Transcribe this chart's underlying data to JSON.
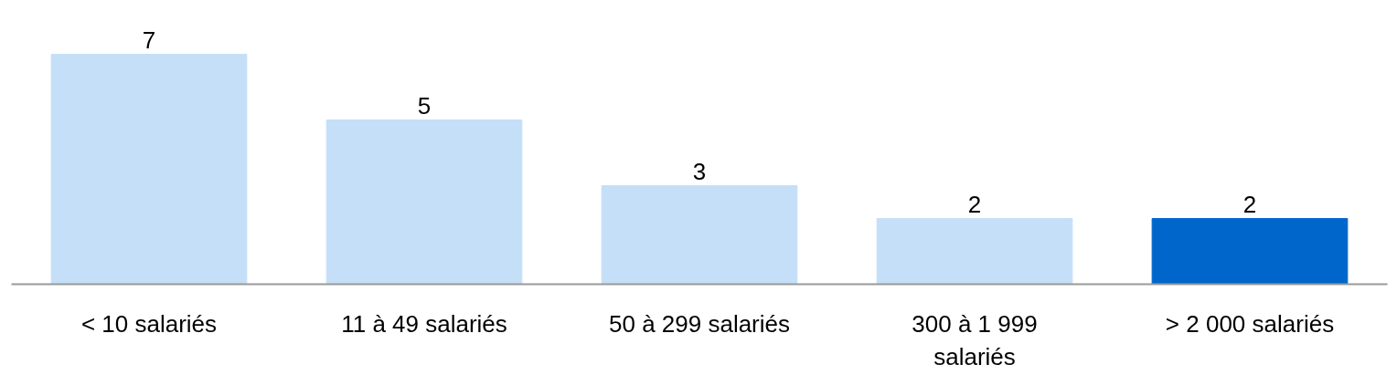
{
  "chart_data": {
    "type": "bar",
    "categories": [
      "< 10 salariés",
      "11 à 49 salariés",
      "50 à 299 salariés",
      "300 à 1 999 salariés",
      "> 2 000 salariés"
    ],
    "values": [
      7,
      5,
      3,
      2,
      2
    ],
    "data_labels": true,
    "colors": [
      "#c6dff8",
      "#c6dff8",
      "#c6dff8",
      "#c6dff8",
      "#0066cc"
    ],
    "tick_labels": "x",
    "grid": false
  }
}
